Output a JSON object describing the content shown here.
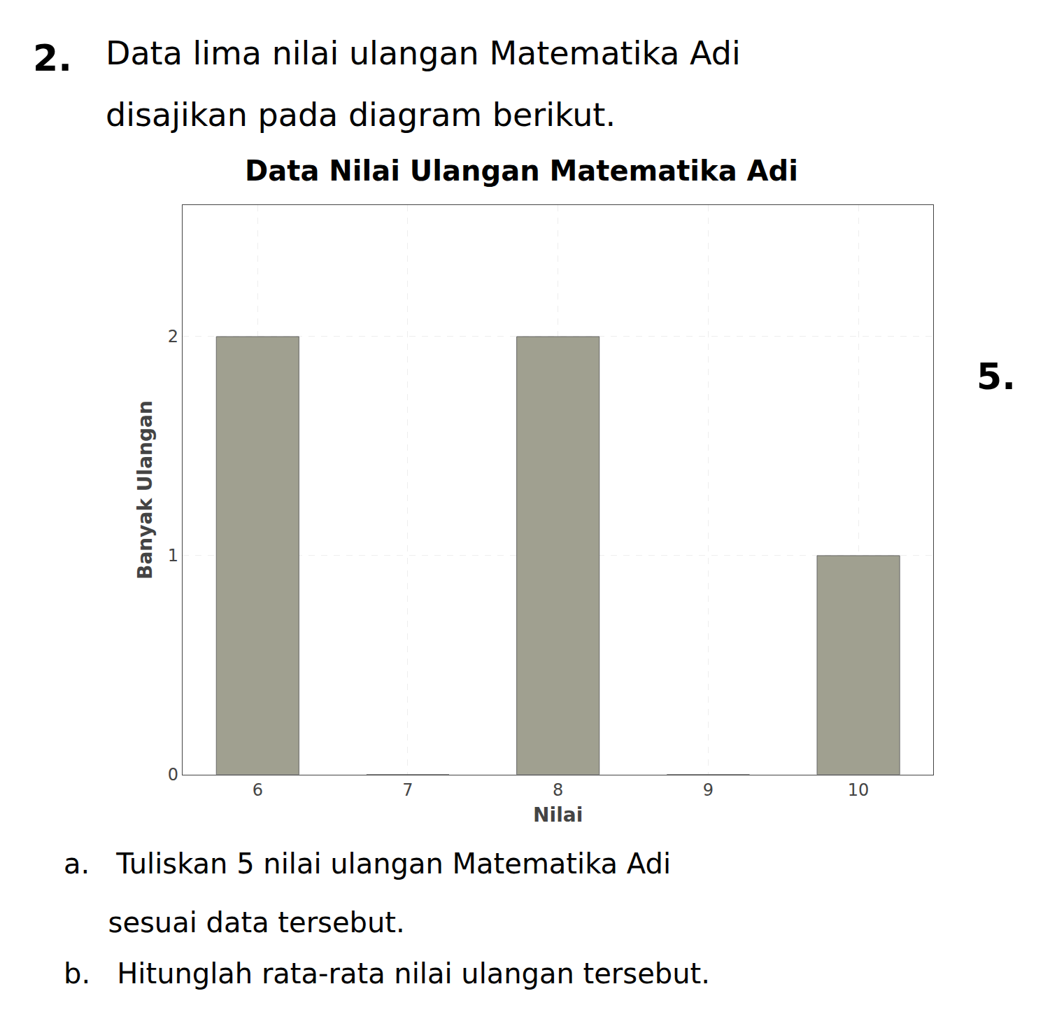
{
  "chart_data": {
    "type": "bar",
    "title": "Data Nilai Ulangan Matematika Adi",
    "xlabel": "Nilai",
    "ylabel": "Banyak Ulangan",
    "x": [
      6,
      7,
      8,
      9,
      10
    ],
    "values": [
      2,
      0,
      2,
      0,
      1
    ],
    "color": "#a0a090",
    "xlim": [
      5.5,
      10.5
    ],
    "xticks": [
      6,
      7,
      8,
      9,
      10
    ],
    "ylim": [
      0,
      2.6
    ],
    "yticks": [
      0,
      1,
      2
    ],
    "grid": true,
    "annotations": [
      "2.",
      "Data lima nilai ulangan Matematika Adi",
      "disajikan pada diagram berikut.",
      "5.",
      "a.   Tuliskan 5 nilai ulangan Matematika Adi",
      "     sesuai data tersebut.",
      "b.   Hitunglah rata-rata nilai ulangan tersebut."
    ]
  }
}
